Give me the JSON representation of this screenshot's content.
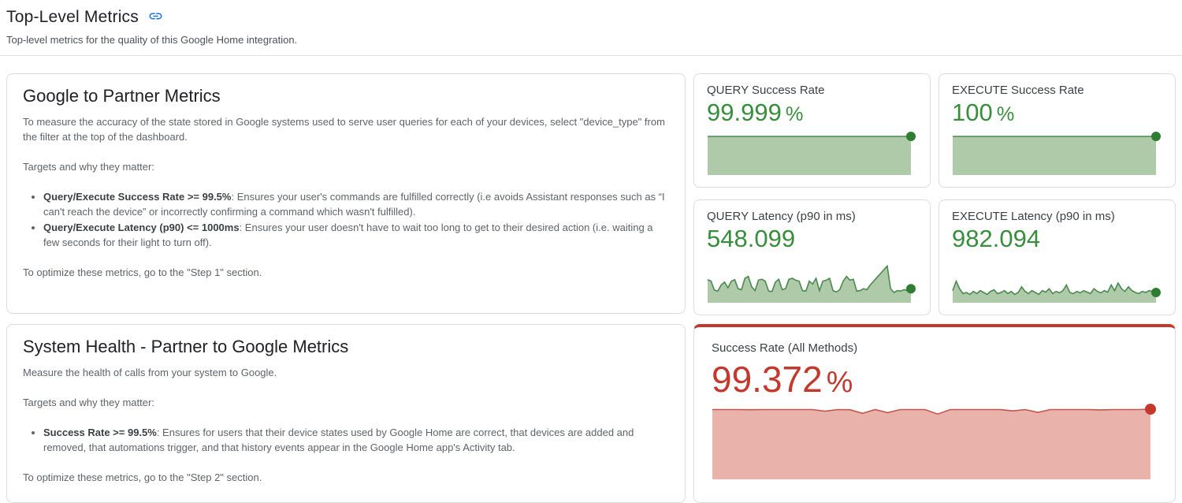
{
  "page": {
    "title": "Top-Level Metrics",
    "subtitle": "Top-level metrics for the quality of this Google Home integration."
  },
  "colors": {
    "accent_blue": "#1a73e8",
    "good": {
      "text": "#388e3c",
      "line": "#4a8a4e",
      "fill": "#aecaa9",
      "dot": "#2e7d32"
    },
    "bad": {
      "text": "#c4392e",
      "line": "#c4554a",
      "fill": "#e9b3ac",
      "dot": "#c4392e"
    }
  },
  "sections": {
    "google_to_partner": {
      "title": "Google to Partner Metrics",
      "intro": "To measure the accuracy of the state stored in Google systems used to serve user queries for each of your devices, select \"device_type\" from the filter at the top of the dashboard.",
      "targets_heading": "Targets and why they matter:",
      "bullets": [
        {
          "bold": "Query/Execute Success Rate >= 99.5%",
          "rest": ": Ensures your user's commands are fulfilled correctly (i.e avoids Assistant responses such as “I can't reach the device” or incorrectly confirming a command which wasn't fulfilled)."
        },
        {
          "bold": "Query/Execute Latency (p90) <= 1000ms",
          "rest": ": Ensures your user doesn't have to wait too long to get to their desired action (i.e. waiting a few seconds for their light to turn off)."
        }
      ],
      "footer": "To optimize these metrics, go to the \"Step 1\" section."
    },
    "system_health": {
      "title": "System Health - Partner to Google Metrics",
      "intro": "Measure the health of calls from your system to Google.",
      "targets_heading": "Targets and why they matter:",
      "bullets": [
        {
          "bold": "Success Rate >= 99.5%",
          "rest": ": Ensures for users that their device states used by Google Home are correct, that devices are added and removed, that automations trigger, and that history events appear in the Google Home app's Activity tab."
        }
      ],
      "footer": "To optimize these metrics, go to the \"Step 2\" section."
    }
  },
  "chart_data": [
    {
      "type": "area",
      "title": "QUERY Success Rate",
      "value": "99.999",
      "unit": "%",
      "status": "good",
      "ylim": [
        0,
        100
      ],
      "values": [
        99.999,
        99.999
      ]
    },
    {
      "type": "area",
      "title": "EXECUTE Success Rate",
      "value": "100",
      "unit": "%",
      "status": "good",
      "ylim": [
        0,
        100
      ],
      "values": [
        100,
        100
      ]
    },
    {
      "type": "area",
      "title": "QUERY Latency (p90 in ms)",
      "value": "548.099",
      "unit": "",
      "status": "good",
      "ylim": [
        0,
        800
      ],
      "values": [
        470,
        440,
        250,
        230,
        360,
        420,
        300,
        440,
        470,
        280,
        260,
        500,
        540,
        320,
        240,
        460,
        480,
        440,
        230,
        220,
        420,
        480,
        260,
        280,
        480,
        500,
        460,
        440,
        240,
        230,
        440,
        380,
        500,
        240,
        440,
        460,
        500,
        240,
        210,
        260,
        440,
        540,
        460,
        480,
        230,
        240,
        280,
        260,
        360,
        440,
        520,
        600,
        680,
        760,
        280,
        200,
        240,
        230,
        260,
        240,
        280
      ]
    },
    {
      "type": "area",
      "title": "EXECUTE Latency (p90 in ms)",
      "value": "982.094",
      "unit": "",
      "status": "good",
      "ylim": [
        0,
        2000
      ],
      "values": [
        600,
        1100,
        700,
        440,
        500,
        400,
        560,
        440,
        600,
        500,
        400,
        560,
        640,
        440,
        500,
        600,
        440,
        560,
        400,
        500,
        800,
        560,
        440,
        600,
        500,
        400,
        600,
        520,
        700,
        440,
        560,
        480,
        600,
        900,
        500,
        440,
        560,
        480,
        600,
        520,
        440,
        700,
        560,
        480,
        600,
        520,
        900,
        600,
        1000,
        700,
        560,
        800,
        600,
        500,
        440,
        560,
        500,
        600,
        560,
        500
      ]
    },
    {
      "type": "area",
      "title": "Success Rate (All Methods)",
      "value": "99.372",
      "unit": "%",
      "status": "bad",
      "ylim": [
        0,
        100
      ],
      "values": [
        99.4,
        99.4,
        99.4,
        99.2,
        99.4,
        99.4,
        99.4,
        99.4,
        99.4,
        97.0,
        99.4,
        99.2,
        94.0,
        99.4,
        95.0,
        99.4,
        99.4,
        99.4,
        93.0,
        99.4,
        99.4,
        99.4,
        99.4,
        99.4,
        97.5,
        99.4,
        95.5,
        99.4,
        99.4,
        99.4,
        99.4,
        99.0,
        99.4,
        99.4,
        99.4,
        100
      ]
    }
  ]
}
